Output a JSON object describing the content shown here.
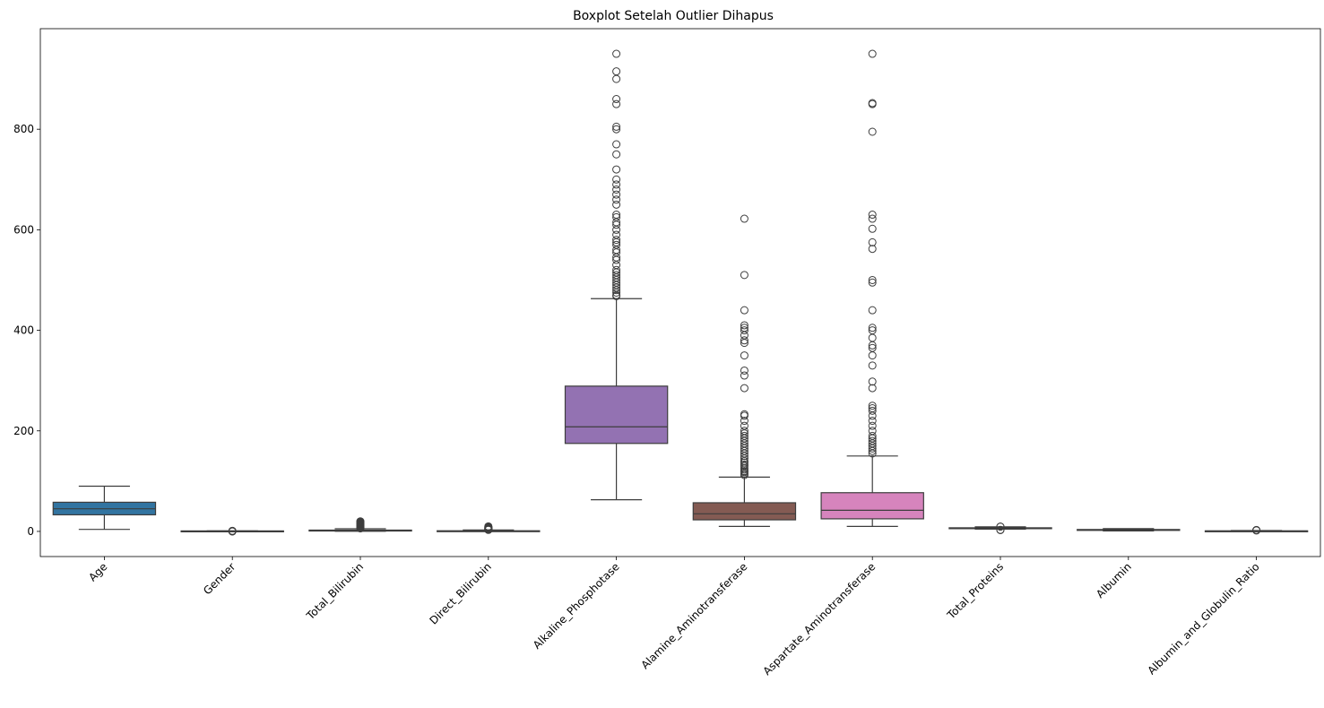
{
  "chart_data": {
    "type": "boxplot",
    "title": "Boxplot Setelah Outlier Dihapus",
    "xlabel": "",
    "ylabel": "",
    "ylim": [
      -50,
      1000
    ],
    "yticks": [
      0,
      200,
      400,
      600,
      800
    ],
    "grid": false,
    "categories": [
      "Age",
      "Gender",
      "Total_Bilirubin",
      "Direct_Bilirubin",
      "Alkaline_Phosphotase",
      "Alamine_Aminotransferase",
      "Aspartate_Aminotransferase",
      "Total_Proteins",
      "Albumin",
      "Albumin_and_Globulin_Ratio"
    ],
    "colors": [
      "#3274a1",
      "#e1812c",
      "#3a923a",
      "#c03d3e",
      "#9372b2",
      "#845b53",
      "#d684bd",
      "#7f7f7f",
      "#a9aa35",
      "#2ebdcc"
    ],
    "boxes": [
      {
        "whisker_low": 4,
        "q1": 33,
        "median": 45,
        "q3": 58,
        "whisker_high": 90,
        "fliers": []
      },
      {
        "whisker_low": 0,
        "q1": 0,
        "median": 0,
        "q3": 1,
        "whisker_high": 1,
        "fliers": [
          0,
          1,
          1,
          0
        ]
      },
      {
        "whisker_low": 0.4,
        "q1": 0.8,
        "median": 1.0,
        "q3": 2.6,
        "whisker_high": 5.3,
        "fliers": [
          6,
          7,
          8,
          9,
          10,
          11,
          12,
          13,
          14,
          15,
          16,
          17,
          18,
          19,
          20
        ]
      },
      {
        "whisker_low": 0.1,
        "q1": 0.2,
        "median": 0.3,
        "q3": 1.3,
        "whisker_high": 2.9,
        "fliers": [
          3,
          3.5,
          4,
          4.5,
          5,
          5.5,
          6,
          7,
          8,
          9,
          10
        ]
      },
      {
        "whisker_low": 63,
        "q1": 175,
        "median": 208,
        "q3": 289,
        "whisker_high": 463,
        "fliers": [
          468,
          470,
          475,
          480,
          485,
          490,
          495,
          500,
          505,
          510,
          515,
          520,
          530,
          540,
          545,
          555,
          560,
          570,
          575,
          580,
          590,
          600,
          610,
          615,
          625,
          630,
          650,
          660,
          670,
          680,
          690,
          700,
          720,
          750,
          770,
          800,
          805,
          850,
          860,
          900,
          915,
          950
        ]
      },
      {
        "whisker_low": 10,
        "q1": 23,
        "median": 35,
        "q3": 57,
        "whisker_high": 108,
        "fliers": [
          112,
          115,
          118,
          120,
          123,
          126,
          130,
          133,
          137,
          140,
          145,
          150,
          155,
          160,
          165,
          170,
          175,
          180,
          185,
          190,
          195,
          200,
          210,
          220,
          230,
          233,
          285,
          310,
          320,
          350,
          375,
          380,
          390,
          400,
          405,
          410,
          440,
          510,
          622
        ]
      },
      {
        "whisker_low": 10,
        "q1": 25,
        "median": 42,
        "q3": 77,
        "whisker_high": 150,
        "fliers": [
          155,
          160,
          165,
          170,
          175,
          180,
          185,
          190,
          200,
          210,
          220,
          230,
          240,
          245,
          250,
          285,
          298,
          330,
          350,
          365,
          370,
          385,
          400,
          405,
          440,
          495,
          500,
          562,
          575,
          602,
          622,
          630,
          795,
          850,
          852,
          950
        ]
      },
      {
        "whisker_low": 4.5,
        "q1": 5.8,
        "median": 6.6,
        "q3": 7.2,
        "whisker_high": 9.0,
        "fliers": [
          2.7,
          3.0,
          9.5,
          9.6
        ]
      },
      {
        "whisker_low": 0.9,
        "q1": 2.6,
        "median": 3.1,
        "q3": 3.8,
        "whisker_high": 5.5,
        "fliers": []
      },
      {
        "whisker_low": 0.3,
        "q1": 0.7,
        "median": 0.93,
        "q3": 1.1,
        "whisker_high": 1.7,
        "fliers": [
          1.9,
          2.5,
          2.8
        ]
      }
    ]
  }
}
